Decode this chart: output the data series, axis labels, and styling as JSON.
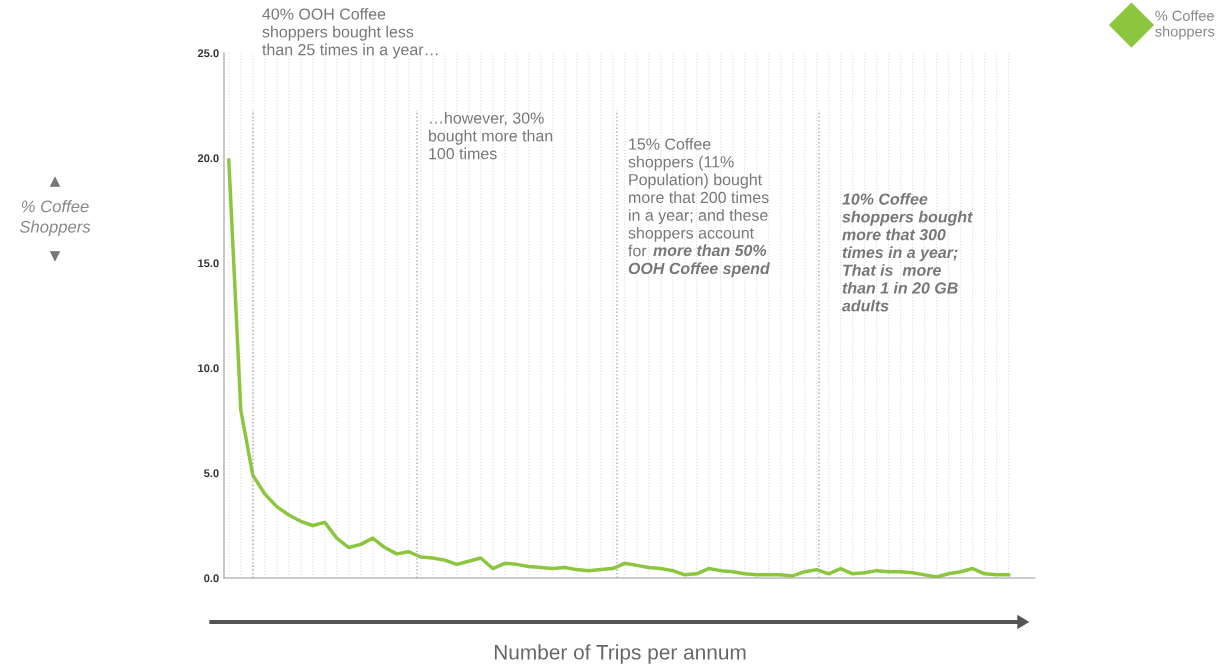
{
  "chart_data": {
    "type": "line",
    "xlabel": "Number of Trips per annum",
    "categories": [
      null,
      null,
      null,
      null,
      null,
      null,
      null,
      null,
      null,
      null,
      null,
      null,
      null,
      null,
      null,
      null,
      null,
      null,
      null,
      null,
      null,
      null,
      null,
      null,
      null,
      null,
      null,
      null,
      null,
      null,
      null,
      null,
      null,
      null,
      null,
      null,
      null,
      null,
      null,
      null,
      null,
      null,
      null,
      null,
      null,
      null,
      null,
      null,
      null,
      null,
      null,
      null,
      null,
      null,
      null,
      null,
      null,
      null,
      null,
      null,
      null,
      null,
      null,
      null,
      null,
      null
    ],
    "series": [
      {
        "name": "% Coffee shoppers",
        "color": "#8cc63f",
        "values": [
          19.9,
          8.0,
          4.9,
          4.0,
          3.4,
          3.0,
          2.7,
          2.5,
          2.65,
          1.9,
          1.45,
          1.6,
          1.9,
          1.45,
          1.15,
          1.25,
          1.0,
          0.95,
          0.85,
          0.65,
          0.8,
          0.95,
          0.45,
          0.7,
          0.65,
          0.55,
          0.5,
          0.45,
          0.5,
          0.4,
          0.35,
          0.4,
          0.45,
          0.7,
          0.6,
          0.5,
          0.45,
          0.35,
          0.15,
          0.2,
          0.45,
          0.35,
          0.3,
          0.2,
          0.15,
          0.15,
          0.15,
          0.1,
          0.3,
          0.4,
          0.2,
          0.45,
          0.2,
          0.25,
          0.35,
          0.3,
          0.3,
          0.25,
          0.15,
          0.05,
          0.2,
          0.3,
          0.45,
          0.2,
          0.15,
          0.15
        ]
      }
    ],
    "ylim": [
      0,
      25
    ],
    "yticks": [
      {
        "value": 0,
        "label": "0.0"
      },
      {
        "value": 5,
        "label": "5.0"
      },
      {
        "value": 10,
        "label": "10.0"
      },
      {
        "value": 15,
        "label": "15.0"
      },
      {
        "value": 20,
        "label": "20.0"
      },
      {
        "value": 25,
        "label": "25.0"
      }
    ],
    "annotations": [
      "% Coffee\nShoppers",
      "40% OOH Coffee\nshoppers bought less\nthan 25 times in a year…",
      "…however, 30%\nbought more than\n100 times",
      "15% Coffee\nshoppers (11%\nPopulation) bought\nmore that 200 times\nin a year; and these\nshoppers account\nfor",
      "more than 50%",
      "OOH Coffee spend",
      "10% Coffee\nshoppers bought\nmore that 300\ntimes in a year;\nThat is  more\nthan 1 in 20 GB\nadults"
    ],
    "grid": "x",
    "legend": "top right",
    "marker": "none",
    "line_style": "solid"
  }
}
